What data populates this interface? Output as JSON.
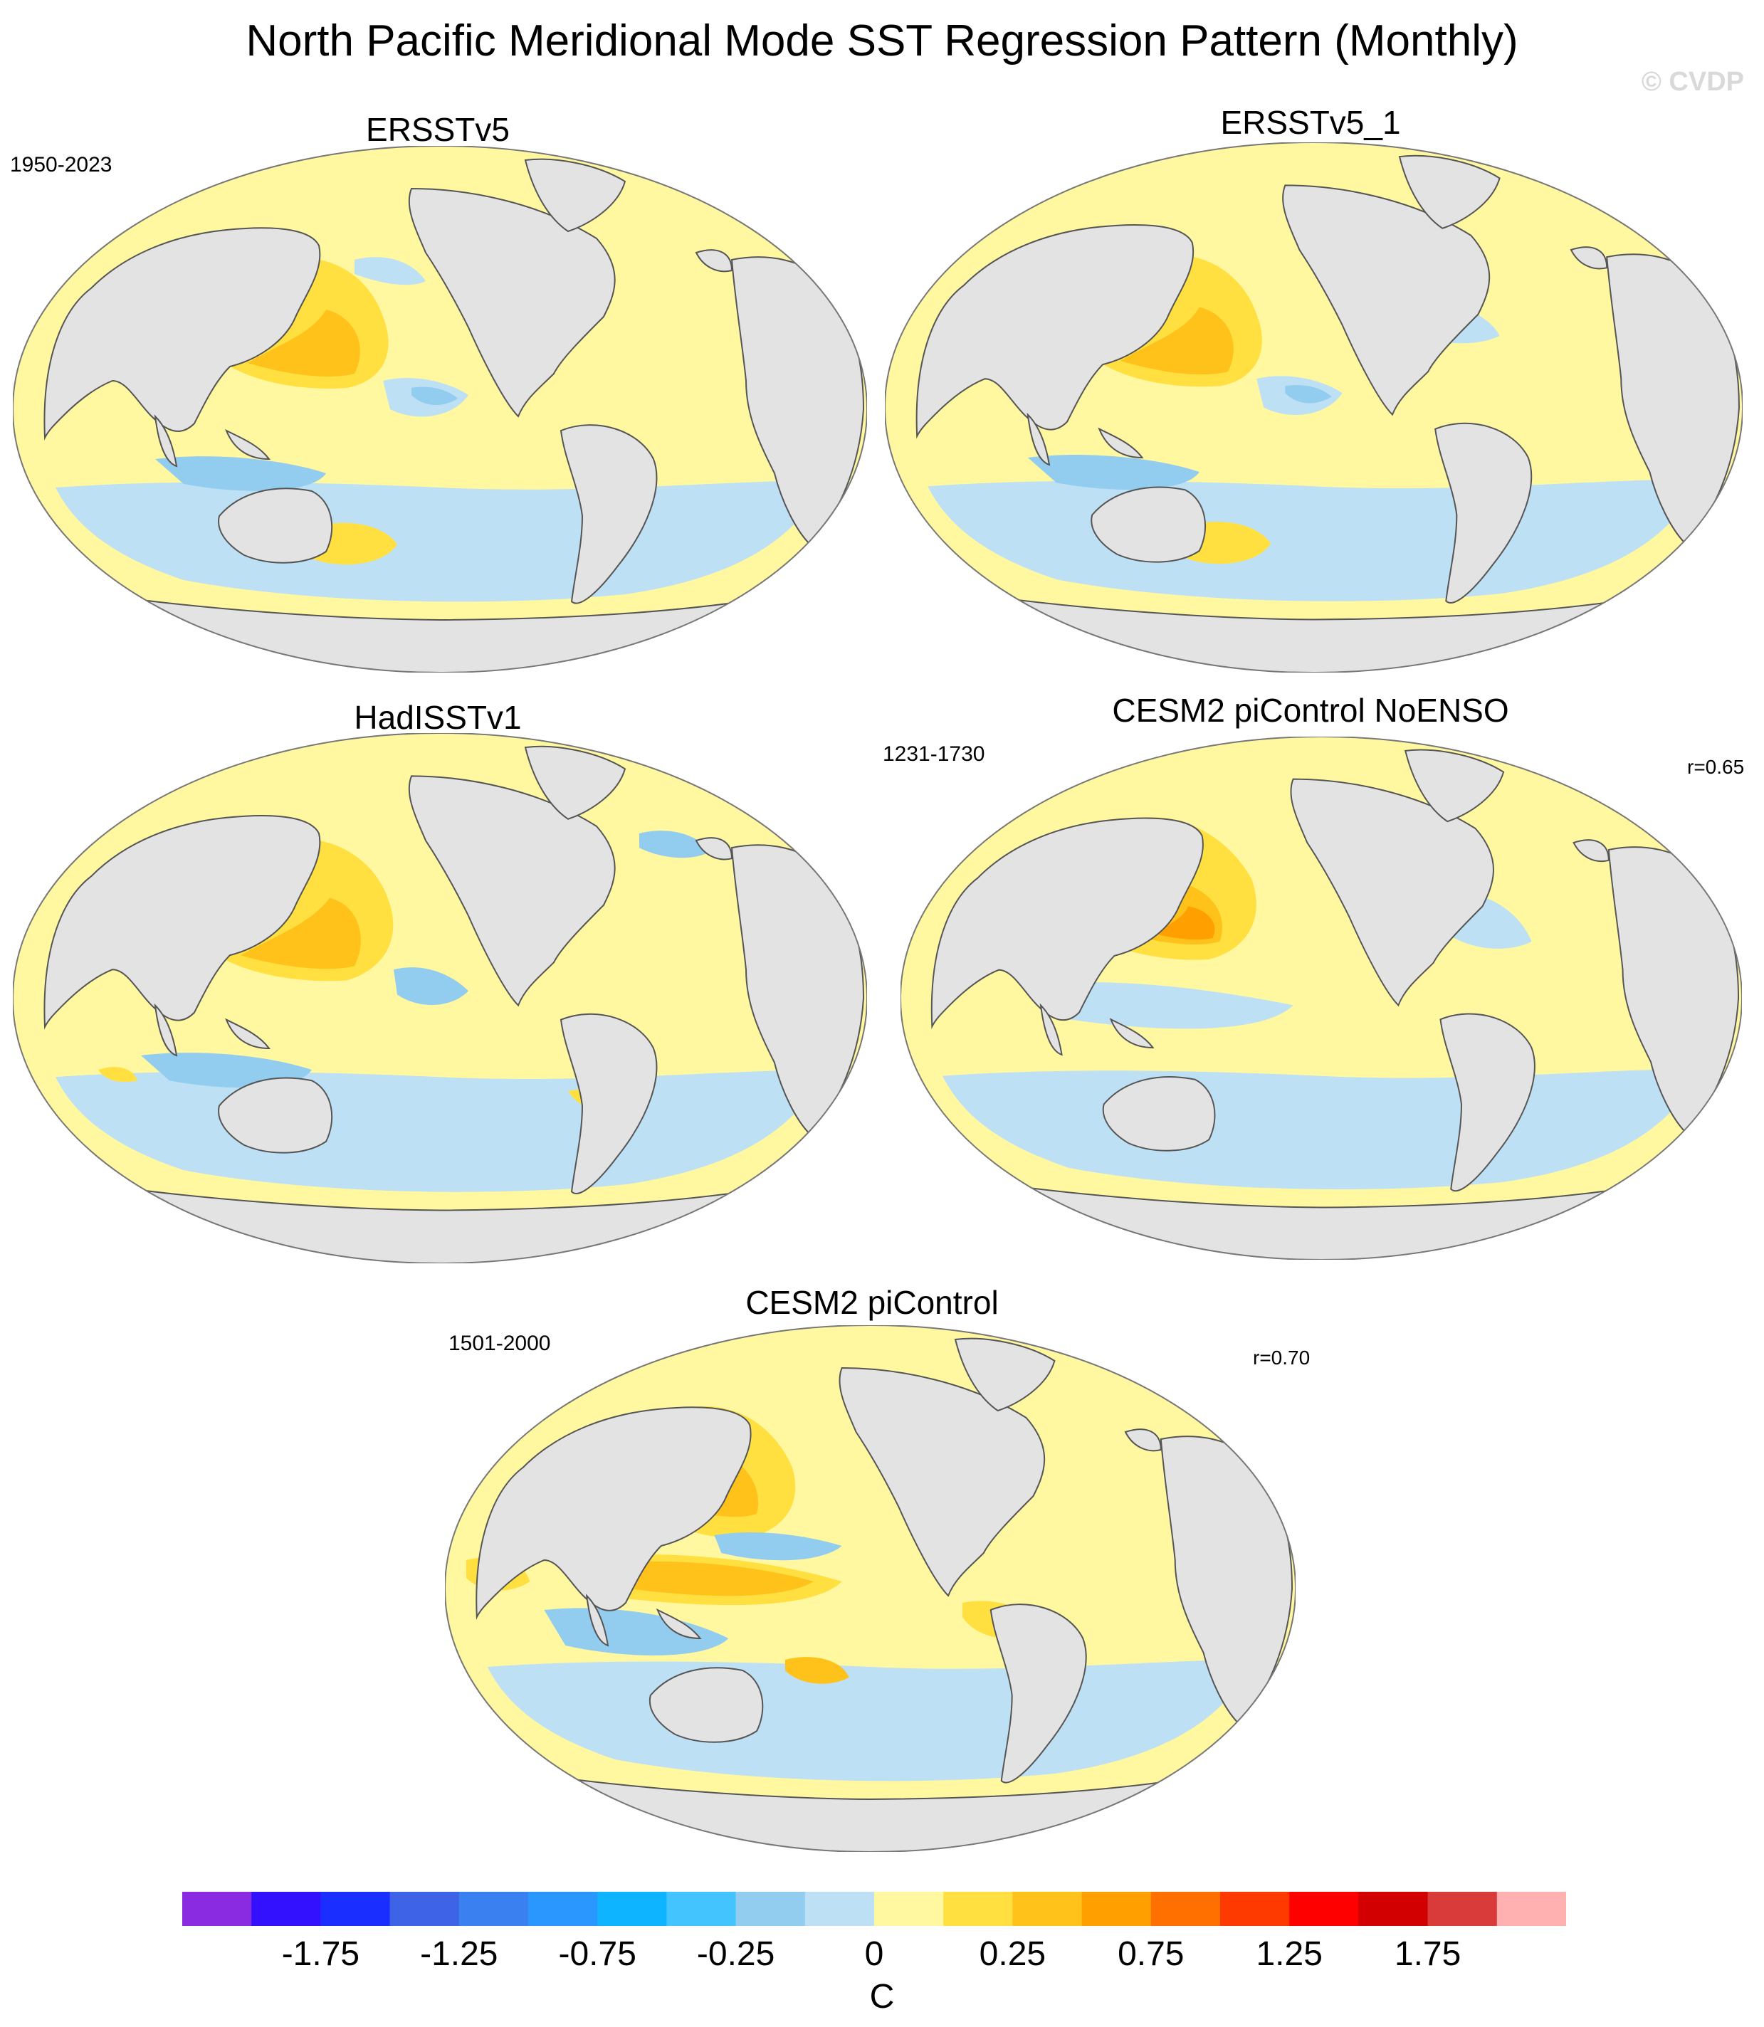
{
  "figure": {
    "title": "North Pacific Meridional Mode SST Regression Pattern (Monthly)",
    "watermark": "© CVDP"
  },
  "panels": [
    {
      "id": "ersstv5",
      "title": "ERSSTv5",
      "period": "1950-2023",
      "corr": ""
    },
    {
      "id": "ersstv5_1",
      "title": "ERSSTv5_1",
      "period": "",
      "corr": ""
    },
    {
      "id": "hadisstv1",
      "title": "HadISSTv1",
      "period": "",
      "corr": ""
    },
    {
      "id": "cesm2_noenso",
      "title": "CESM2 piControl NoENSO",
      "period": "1231-1730",
      "corr": "r=0.65"
    },
    {
      "id": "cesm2",
      "title": "CESM2 piControl",
      "period": "1501-2000",
      "corr": "r=0.70"
    }
  ],
  "colorbar": {
    "units": "C",
    "tick_labels": [
      "-1.75",
      "-1.25",
      "-0.75",
      "-0.25",
      "0",
      "0.25",
      "0.75",
      "1.25",
      "1.75"
    ],
    "colors": [
      "#8a2be2",
      "#3311ff",
      "#1a2eff",
      "#3f63e6",
      "#3a80f0",
      "#2a97ff",
      "#0eb4ff",
      "#43c4ff",
      "#92cdf0",
      "#bde0f5",
      "#fff8a0",
      "#ffe040",
      "#ffc21a",
      "#ffa000",
      "#ff7000",
      "#ff3a00",
      "#ff0000",
      "#d20000",
      "#d93a3a",
      "#ffb0b0"
    ]
  },
  "colors": {
    "land": "#e3e3e3",
    "coast": "#555555",
    "neg_light": "#bde0f5",
    "neg_mid": "#92cdf0",
    "neg_strong": "#43c4ff",
    "pos_light": "#fff8a0",
    "pos_mid": "#ffe040",
    "pos_strong": "#ffc21a",
    "pos_stronger": "#ffa000"
  }
}
